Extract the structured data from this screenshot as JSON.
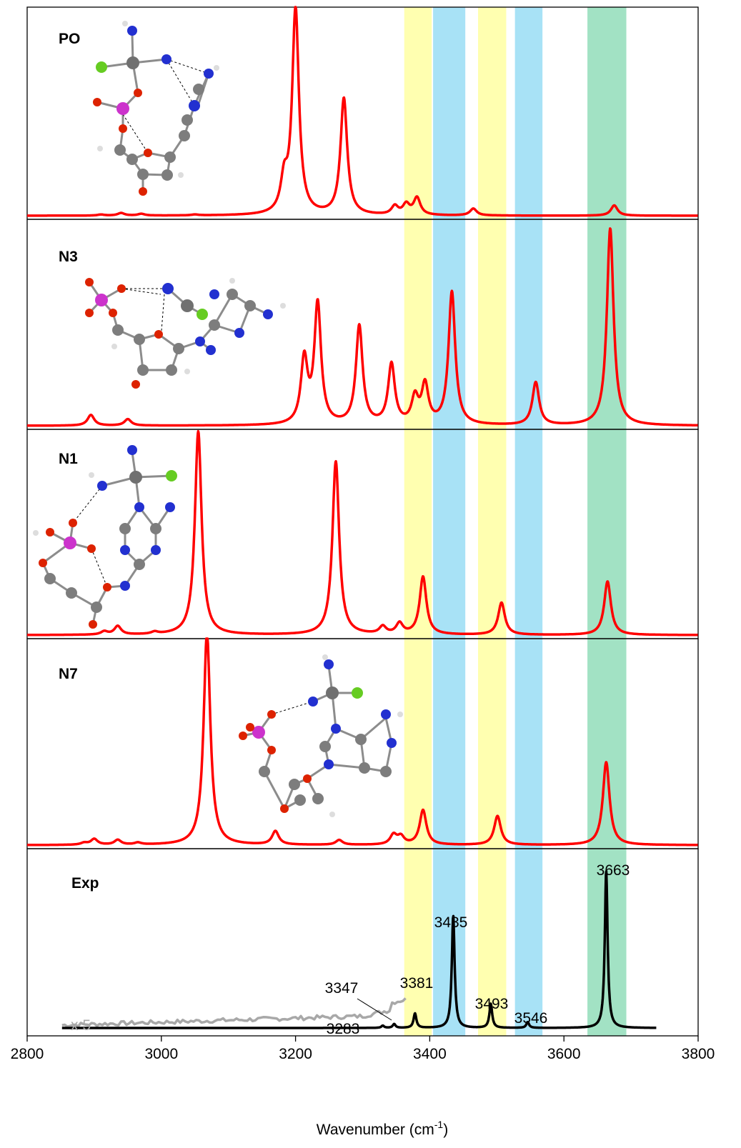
{
  "chart_data": {
    "type": "line",
    "xlabel": "Wavenumber (cm",
    "xlabel_sup": "-1",
    "xlabel_close": ")",
    "xlim": [
      2800,
      3800
    ],
    "x_ticks": [
      {
        "value": 2800,
        "label": "2800"
      },
      {
        "value": 3000,
        "label": "3000"
      },
      {
        "value": 3200,
        "label": "3200"
      },
      {
        "value": 3400,
        "label": "3400"
      },
      {
        "value": 3600,
        "label": "3600"
      },
      {
        "value": 3800,
        "label": "3800"
      }
    ],
    "highlight_bands": [
      {
        "x0": 3362,
        "x1": 3403,
        "color": "#ffffb0"
      },
      {
        "x0": 3405,
        "x1": 3453,
        "color": "#a8e2f6"
      },
      {
        "x0": 3472,
        "x1": 3514,
        "color": "#ffffb0"
      },
      {
        "x0": 3527,
        "x1": 3568,
        "color": "#a8e2f6"
      },
      {
        "x0": 3635,
        "x1": 3693,
        "color": "#a2e2c4"
      }
    ],
    "colors": {
      "computed": "#ff0000",
      "experiment": "#000000",
      "scaled": "#a8a8a8"
    },
    "panels": [
      {
        "label": "PO",
        "width": 0.006,
        "peaks": [
          [
            2910,
            0.6
          ],
          [
            2940,
            1.5
          ],
          [
            2970,
            1.0
          ],
          [
            3050,
            0.5
          ],
          [
            3183,
            18
          ],
          [
            3200,
            120
          ],
          [
            3272,
            68
          ],
          [
            3348,
            5
          ],
          [
            3365,
            6
          ],
          [
            3381,
            10
          ],
          [
            3465,
            4
          ],
          [
            3675,
            6
          ]
        ]
      },
      {
        "label": "N3",
        "width": 0.006,
        "peaks": [
          [
            2895,
            2.5
          ],
          [
            2950,
            1.5
          ],
          [
            3213,
            15
          ],
          [
            3233,
            28
          ],
          [
            3295,
            23
          ],
          [
            3343,
            14
          ],
          [
            3378,
            6
          ],
          [
            3393,
            9
          ],
          [
            3433,
            31
          ],
          [
            3558,
            10
          ],
          [
            3669,
            46
          ]
        ]
      },
      {
        "label": "N1",
        "width": 0.006,
        "peaks": [
          [
            2915,
            1.5
          ],
          [
            2935,
            4
          ],
          [
            2990,
            1
          ],
          [
            3055,
            95
          ],
          [
            3260,
            81
          ],
          [
            3330,
            3.5
          ],
          [
            3355,
            5
          ],
          [
            3390,
            27
          ],
          [
            3507,
            15
          ],
          [
            3665,
            25
          ]
        ]
      },
      {
        "label": "N7",
        "width": 0.006,
        "peaks": [
          [
            2885,
            1
          ],
          [
            2900,
            3
          ],
          [
            2935,
            2.5
          ],
          [
            2965,
            1
          ],
          [
            3068,
            110
          ],
          [
            3170,
            7
          ],
          [
            3265,
            2.5
          ],
          [
            3346,
            5
          ],
          [
            3357,
            4
          ],
          [
            3390,
            18
          ],
          [
            3501,
            15
          ],
          [
            3663,
            43
          ]
        ]
      },
      {
        "label": "Exp",
        "width": 0.0025,
        "peaks": [
          [
            3330,
            0.7
          ],
          [
            3347,
            1.2
          ],
          [
            3378,
            4.5
          ],
          [
            3435,
            35
          ],
          [
            3491,
            7.5
          ],
          [
            3546,
            1.8
          ],
          [
            3663,
            49
          ]
        ],
        "annotations": [
          "3663",
          "3435",
          "3381",
          "3347",
          "3283",
          "3493",
          "3546"
        ],
        "scaled_label": "x 5"
      }
    ]
  }
}
